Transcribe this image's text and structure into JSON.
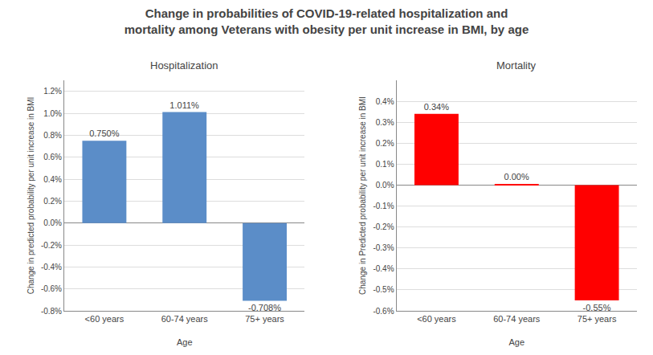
{
  "title": "Change in probabilities of COVID-19-related hospitalization and\nmortality among Veterans with obesity per unit increase in BMI, by age",
  "chart_data": [
    {
      "type": "bar",
      "title": "Hospitalization",
      "categories": [
        "<60 years",
        "60-74 years",
        "75+ years"
      ],
      "xlabel": "Age",
      "ylabel": "Change in predicted probability per unit increase in BMI",
      "values": [
        0.0075,
        0.01011,
        -0.00708
      ],
      "value_labels": [
        "0.750%",
        "1.011%",
        "-0.708%"
      ],
      "data_labels": true,
      "colors": [
        "#5b8dc8",
        "#5b8dc8",
        "#5b8dc8"
      ],
      "ylim": [
        -0.008,
        0.013
      ],
      "yticks": [
        {
          "value": -0.008,
          "label": "-0.8%"
        },
        {
          "value": -0.006,
          "label": "-0.6%"
        },
        {
          "value": -0.004,
          "label": "-0.4%"
        },
        {
          "value": -0.002,
          "label": "-0.2%"
        },
        {
          "value": 0.0,
          "label": "0.0%"
        },
        {
          "value": 0.002,
          "label": "0.2%"
        },
        {
          "value": 0.004,
          "label": "0.4%"
        },
        {
          "value": 0.006,
          "label": "0.6%"
        },
        {
          "value": 0.008,
          "label": "0.8%"
        },
        {
          "value": 0.01,
          "label": "1.0%"
        },
        {
          "value": 0.012,
          "label": "1.2%"
        }
      ],
      "grid": true
    },
    {
      "type": "bar",
      "title": "Mortality",
      "categories": [
        "<60 years",
        "60-74 years",
        "75+ years"
      ],
      "xlabel": "Age",
      "ylabel": "Change in Predicted probability per unit increase in BMI",
      "values": [
        0.0034,
        4e-05,
        -0.0055
      ],
      "value_labels": [
        "0.34%",
        "0.00%",
        "-0.55%"
      ],
      "data_labels": true,
      "colors": [
        "#ff0000",
        "#ff0000",
        "#ff0000"
      ],
      "ylim": [
        -0.006,
        0.005
      ],
      "yticks": [
        {
          "value": -0.006,
          "label": "-0.6%"
        },
        {
          "value": -0.005,
          "label": "-0.5%"
        },
        {
          "value": -0.004,
          "label": "-0.4%"
        },
        {
          "value": -0.003,
          "label": "-0.3%"
        },
        {
          "value": -0.002,
          "label": "-0.2%"
        },
        {
          "value": -0.001,
          "label": "-0.1%"
        },
        {
          "value": 0.0,
          "label": "0.0%"
        },
        {
          "value": 0.001,
          "label": "0.1%"
        },
        {
          "value": 0.002,
          "label": "0.2%"
        },
        {
          "value": 0.003,
          "label": "0.3%"
        },
        {
          "value": 0.004,
          "label": "0.4%"
        }
      ],
      "grid": true
    }
  ]
}
